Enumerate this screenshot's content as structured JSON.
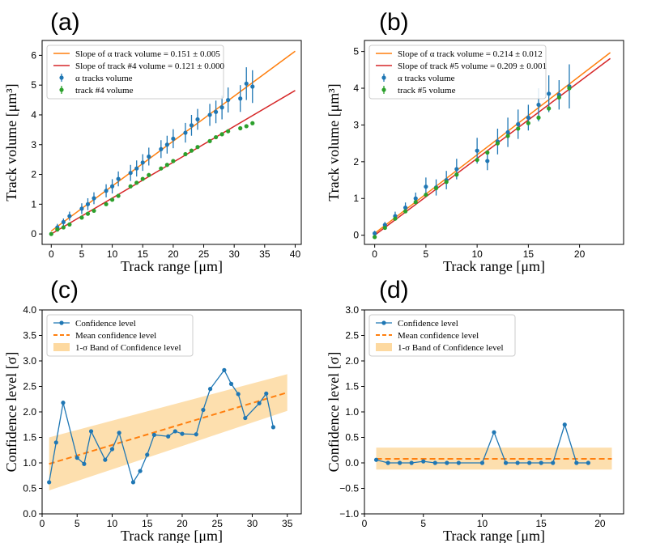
{
  "chart_data": [
    {
      "id": "a",
      "type": "scatter",
      "panel_label": "(a)",
      "xlabel": "Track range [μm]",
      "ylabel": "Track volume [μm³]",
      "xlim": [
        -1.5,
        41
      ],
      "ylim": [
        -0.35,
        6.5
      ],
      "xticks": [
        0,
        5,
        10,
        15,
        20,
        25,
        30,
        35,
        40
      ],
      "yticks": [
        0,
        1,
        2,
        3,
        4,
        5,
        6
      ],
      "legend_position": "upper-left",
      "fit_lines": [
        {
          "label": "Slope of α track volume = 0.151 ± 0.005",
          "color": "#ff7f0e",
          "x": [
            0,
            40
          ],
          "y": [
            0.1,
            6.14
          ]
        },
        {
          "label": "Slope of track #4 volume = 0.121 ± 0.000",
          "color": "#d62728",
          "x": [
            0,
            40
          ],
          "y": [
            0.0,
            4.82
          ]
        }
      ],
      "series": [
        {
          "name": "α tracks volume",
          "color": "#1f77b4",
          "x": [
            1,
            2,
            3,
            5,
            6,
            7,
            9,
            10,
            11,
            13,
            14,
            15,
            16,
            18,
            19,
            20,
            22,
            23,
            24,
            26,
            27,
            28,
            29,
            31,
            32,
            33
          ],
          "y": [
            0.22,
            0.4,
            0.6,
            0.85,
            1.0,
            1.2,
            1.45,
            1.6,
            1.85,
            2.05,
            2.2,
            2.4,
            2.6,
            2.85,
            3.0,
            3.2,
            3.4,
            3.65,
            3.85,
            4.0,
            4.1,
            4.25,
            4.5,
            4.55,
            5.05,
            4.95
          ],
          "err": [
            0.12,
            0.12,
            0.15,
            0.18,
            0.2,
            0.2,
            0.22,
            0.24,
            0.25,
            0.27,
            0.27,
            0.28,
            0.3,
            0.3,
            0.3,
            0.32,
            0.33,
            0.35,
            0.35,
            0.37,
            0.38,
            0.4,
            0.42,
            0.45,
            0.55,
            0.55
          ]
        },
        {
          "name": "track #4 volume",
          "color": "#2ca02c",
          "x": [
            0,
            1,
            2,
            3,
            5,
            6,
            7,
            9,
            10,
            11,
            13,
            14,
            15,
            16,
            18,
            19,
            20,
            22,
            23,
            24,
            26,
            27,
            28,
            29,
            31,
            32,
            33
          ],
          "y": [
            0.0,
            0.15,
            0.22,
            0.32,
            0.55,
            0.68,
            0.78,
            1.0,
            1.15,
            1.28,
            1.6,
            1.72,
            1.85,
            1.98,
            2.2,
            2.32,
            2.45,
            2.68,
            2.8,
            2.92,
            3.12,
            3.25,
            3.35,
            3.45,
            3.55,
            3.62,
            3.72
          ]
        }
      ]
    },
    {
      "id": "b",
      "type": "scatter",
      "panel_label": "(b)",
      "xlabel": "Track range [μm]",
      "ylabel": "Track volume [μm³]",
      "xlim": [
        -1,
        24.3
      ],
      "ylim": [
        -0.25,
        5.3
      ],
      "xticks": [
        0,
        5,
        10,
        15,
        20
      ],
      "yticks": [
        0,
        1,
        2,
        3,
        4,
        5
      ],
      "legend_position": "upper-left",
      "fit_lines": [
        {
          "label": "Slope of α track volume = 0.214 ± 0.012",
          "color": "#ff7f0e",
          "x": [
            0,
            23
          ],
          "y": [
            0.05,
            4.97
          ]
        },
        {
          "label": "Slope of track #5 volume = 0.209 ± 0.001",
          "color": "#d62728",
          "x": [
            0,
            23
          ],
          "y": [
            0.0,
            4.81
          ]
        }
      ],
      "series": [
        {
          "name": "α tracks volume",
          "color": "#1f77b4",
          "x": [
            0,
            1,
            2,
            3,
            4,
            5,
            6,
            7,
            8,
            10,
            11,
            12,
            13,
            14,
            15,
            16,
            17,
            18,
            19
          ],
          "y": [
            0.05,
            0.28,
            0.52,
            0.75,
            1.0,
            1.32,
            1.3,
            1.5,
            1.8,
            2.3,
            2.02,
            2.55,
            2.8,
            3.02,
            3.2,
            3.55,
            3.85,
            3.82,
            4.05
          ],
          "err": [
            0.07,
            0.08,
            0.12,
            0.14,
            0.16,
            0.25,
            0.22,
            0.25,
            0.28,
            0.35,
            0.25,
            0.35,
            0.4,
            0.4,
            0.35,
            0.45,
            0.5,
            0.4,
            0.6
          ]
        },
        {
          "name": "track #5 volume",
          "color": "#2ca02c",
          "x": [
            0,
            1,
            2,
            3,
            4,
            5,
            6,
            7,
            8,
            10,
            11,
            12,
            13,
            14,
            15,
            16,
            17,
            18,
            19
          ],
          "y": [
            -0.05,
            0.2,
            0.45,
            0.65,
            0.9,
            1.1,
            1.28,
            1.45,
            1.65,
            2.05,
            2.25,
            2.5,
            2.7,
            2.9,
            3.05,
            3.2,
            3.45,
            3.75,
            4.0
          ]
        }
      ]
    },
    {
      "id": "c",
      "type": "line",
      "panel_label": "(c)",
      "xlabel": "Track range [μm]",
      "ylabel": "Confidence level [σ]",
      "xlim": [
        0,
        37
      ],
      "ylim": [
        0,
        4.0
      ],
      "xticks": [
        0,
        5,
        10,
        15,
        20,
        25,
        30,
        35
      ],
      "ytick_labels": [
        "0.0",
        "0.5",
        "1.0",
        "1.5",
        "2.0",
        "2.5",
        "3.0",
        "3.5",
        "4.0"
      ],
      "legend_position": "upper-left",
      "legend": [
        "Confidence level",
        "Mean confidence level",
        "1-σ Band of Confidence level"
      ],
      "series": [
        {
          "name": "Confidence level",
          "color": "#1f77b4",
          "x": [
            1,
            2,
            3,
            5,
            6,
            7,
            9,
            10,
            11,
            13,
            14,
            15,
            16,
            18,
            19,
            20,
            22,
            23,
            24,
            26,
            27,
            28,
            29,
            31,
            32,
            33
          ],
          "y": [
            0.62,
            1.4,
            2.18,
            1.1,
            0.98,
            1.62,
            1.06,
            1.27,
            1.59,
            0.62,
            0.84,
            1.16,
            1.55,
            1.52,
            1.62,
            1.57,
            1.56,
            2.04,
            2.45,
            2.82,
            2.55,
            2.35,
            1.88,
            2.17,
            2.36,
            1.7
          ]
        }
      ],
      "mean": {
        "x": [
          1,
          35
        ],
        "y": [
          0.98,
          2.38
        ],
        "color": "#ff7f0e"
      },
      "band": {
        "x": [
          1,
          35
        ],
        "lower": [
          0.46,
          2.02
        ],
        "upper": [
          1.5,
          2.74
        ],
        "color": "#fdd9a0"
      }
    },
    {
      "id": "d",
      "type": "line",
      "panel_label": "(d)",
      "xlabel": "Track range [μm]",
      "ylabel": "Confidence level [σ]",
      "xlim": [
        0,
        22
      ],
      "ylim": [
        -1.0,
        3.0
      ],
      "xticks": [
        0,
        5,
        10,
        15,
        20
      ],
      "ytick_labels": [
        "−1.0",
        "−0.5",
        "0.0",
        "0.5",
        "1.0",
        "1.5",
        "2.0",
        "2.5",
        "3.0"
      ],
      "legend_position": "upper-left",
      "legend": [
        "Confidence level",
        "Mean confidence level",
        "1-σ Band of Confidence level"
      ],
      "series": [
        {
          "name": "Confidence level",
          "color": "#1f77b4",
          "x": [
            1,
            2,
            3,
            4,
            5,
            6,
            7,
            8,
            10,
            11,
            12,
            13,
            14,
            15,
            16,
            17,
            18,
            19
          ],
          "y": [
            0.06,
            0.0,
            0.0,
            0.0,
            0.03,
            0.0,
            0.0,
            0.0,
            0.0,
            0.6,
            0.0,
            0.0,
            0.0,
            0.0,
            0.0,
            0.75,
            0.0,
            0.0
          ]
        }
      ],
      "mean": {
        "x": [
          1,
          21
        ],
        "y": [
          0.08,
          0.08
        ],
        "color": "#ff7f0e"
      },
      "band": {
        "x": [
          1,
          21
        ],
        "lower": [
          -0.13,
          -0.13
        ],
        "upper": [
          0.3,
          0.3
        ],
        "color": "#fdd9a0"
      }
    }
  ]
}
